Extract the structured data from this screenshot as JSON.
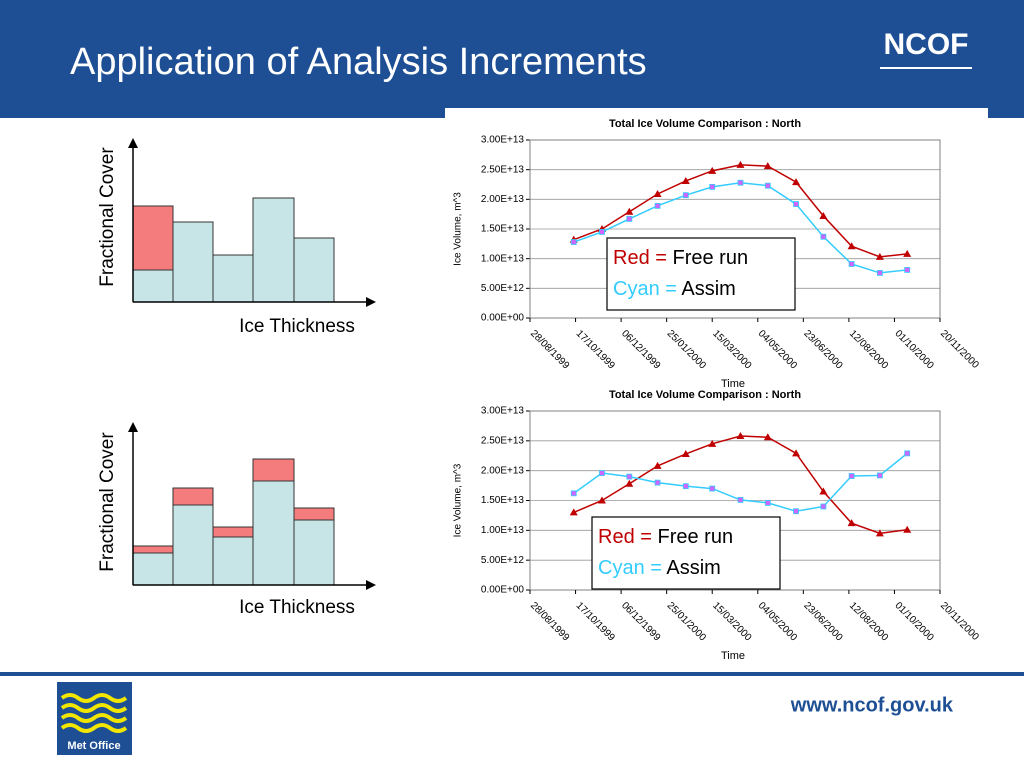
{
  "header": {
    "title": "Application of Analysis Increments",
    "logo": "NCOF"
  },
  "diagrams": [
    {
      "y_label": "Fractional Cover",
      "x_label": "Ice Thickness"
    },
    {
      "y_label": "Fractional Cover",
      "x_label": "Ice Thickness"
    }
  ],
  "chart_data": [
    {
      "type": "line",
      "title": "Total Ice Volume Comparison :  North",
      "x_label": "Time",
      "y_label": "Ice Volume, m^3",
      "x": [
        "15/10/1999",
        "15/11/1999",
        "15/12/1999",
        "15/01/2000",
        "15/02/2000",
        "15/03/2000",
        "15/04/2000",
        "15/05/2000",
        "15/06/2000",
        "15/07/2000",
        "15/08/2000",
        "15/09/2000",
        "15/10/2000"
      ],
      "xlim": [
        "28/08/1999",
        "20/11/2000"
      ],
      "xticks": [
        "28/08/1999",
        "17/10/1999",
        "06/12/1999",
        "25/01/2000",
        "15/03/2000",
        "04/05/2000",
        "23/06/2000",
        "12/08/2000",
        "01/10/2000",
        "20/11/2000"
      ],
      "ylim": [
        0,
        30000000000000.0
      ],
      "yticks": [
        {
          "value": 0,
          "label": "0.00E+00"
        },
        {
          "value": 5000000000000.0,
          "label": "5.00E+12"
        },
        {
          "value": 10000000000000.0,
          "label": "1.00E+13"
        },
        {
          "value": 15000000000000.0,
          "label": "1.50E+13"
        },
        {
          "value": 20000000000000.0,
          "label": "2.00E+13"
        },
        {
          "value": 25000000000000.0,
          "label": "2.50E+13"
        },
        {
          "value": 30000000000000.0,
          "label": "3.00E+13"
        }
      ],
      "grid": true,
      "legend_prefixes": [
        "Red =",
        "Cyan ="
      ],
      "series": [
        {
          "name": "Free run",
          "color": "#c00000",
          "marker_color": "#c00000",
          "values": [
            13200000000000.0,
            15000000000000.0,
            17900000000000.0,
            20900000000000.0,
            23100000000000.0,
            24800000000000.0,
            25800000000000.0,
            25600000000000.0,
            22900000000000.0,
            17200000000000.0,
            12100000000000.0,
            10300000000000.0,
            10800000000000.0
          ]
        },
        {
          "name": "Assim",
          "color": "#33ccff",
          "marker_color": "#cc66ff",
          "values": [
            12800000000000.0,
            14500000000000.0,
            16700000000000.0,
            18900000000000.0,
            20700000000000.0,
            22100000000000.0,
            22800000000000.0,
            22300000000000.0,
            19200000000000.0,
            13700000000000.0,
            9100000000000.0,
            7600000000000.0,
            8100000000000.0
          ]
        }
      ]
    },
    {
      "type": "line",
      "title": "Total Ice Volume Comparison :  North",
      "x_label": "Time",
      "y_label": "Ice Volume, m^3",
      "x": [
        "15/10/1999",
        "15/11/1999",
        "15/12/1999",
        "15/01/2000",
        "15/02/2000",
        "15/03/2000",
        "15/04/2000",
        "15/05/2000",
        "15/06/2000",
        "15/07/2000",
        "15/08/2000",
        "15/09/2000",
        "15/10/2000"
      ],
      "xlim": [
        "28/08/1999",
        "20/11/2000"
      ],
      "xticks": [
        "28/08/1999",
        "17/10/1999",
        "06/12/1999",
        "25/01/2000",
        "15/03/2000",
        "04/05/2000",
        "23/06/2000",
        "12/08/2000",
        "01/10/2000",
        "20/11/2000"
      ],
      "ylim": [
        0,
        30000000000000.0
      ],
      "yticks": [
        {
          "value": 0,
          "label": "0.00E+00"
        },
        {
          "value": 5000000000000.0,
          "label": "5.00E+12"
        },
        {
          "value": 10000000000000.0,
          "label": "1.00E+13"
        },
        {
          "value": 15000000000000.0,
          "label": "1.50E+13"
        },
        {
          "value": 20000000000000.0,
          "label": "2.00E+13"
        },
        {
          "value": 25000000000000.0,
          "label": "2.50E+13"
        },
        {
          "value": 30000000000000.0,
          "label": "3.00E+13"
        }
      ],
      "grid": true,
      "legend_prefixes": [
        "Red =",
        "Cyan ="
      ],
      "series": [
        {
          "name": "Free run",
          "color": "#c00000",
          "marker_color": "#c00000",
          "values": [
            13000000000000.0,
            15000000000000.0,
            17800000000000.0,
            20800000000000.0,
            22800000000000.0,
            24500000000000.0,
            25800000000000.0,
            25600000000000.0,
            22900000000000.0,
            16500000000000.0,
            11200000000000.0,
            9500000000000.0,
            10100000000000.0
          ]
        },
        {
          "name": "Assim",
          "color": "#33ccff",
          "marker_color": "#cc66ff",
          "values": [
            16200000000000.0,
            19600000000000.0,
            19000000000000.0,
            18000000000000.0,
            17400000000000.0,
            17000000000000.0,
            15100000000000.0,
            14600000000000.0,
            13200000000000.0,
            14000000000000.0,
            19100000000000.0,
            19200000000000.0,
            22900000000000.0
          ]
        }
      ]
    }
  ],
  "footer": {
    "url": "www.ncof.gov.uk",
    "logo": "Met Office"
  }
}
